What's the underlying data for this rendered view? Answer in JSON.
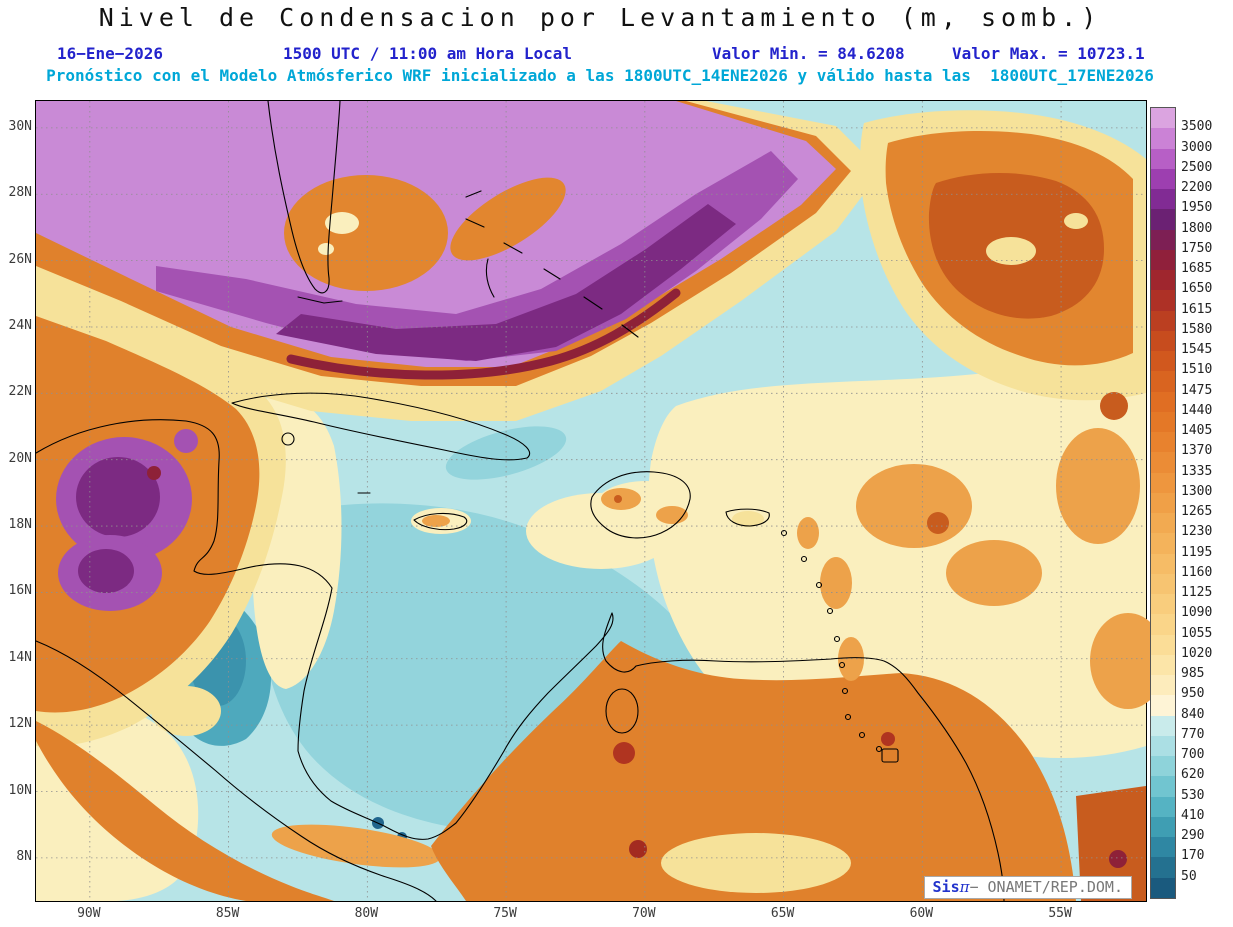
{
  "header": {
    "title": "Nivel de Condensacion por Levantamiento (m, somb.)",
    "date": "16−Ene−2026",
    "time": "1500 UTC / 11:00 am Hora Local",
    "value_min_label": "Valor Min. = 84.6208",
    "value_max_label": "Valor Max. = 10723.1",
    "model_line": "Pronóstico con el Modelo Atmósferico WRF inicializado a las 1800UTC_14ENE2026 y válido hasta las  1800UTC_17ENE2026"
  },
  "branding": {
    "sis": "Sis",
    "pi": "π",
    "rest": "− ONAMET/REP.DOM."
  },
  "chart_data": {
    "type": "heatmap",
    "title": "Nivel de Condensacion por Levantamiento (m, somb.)",
    "variable": "Nivel de Condensacion por Levantamiento (Lifted Condensation Level)",
    "units": "m",
    "shading_note": "somb.",
    "valid_date": "16-Ene-2026",
    "valid_time": "1500 UTC / 11:00 am Hora Local",
    "value_min": 84.6208,
    "value_max": 10723.1,
    "model": "WRF",
    "initialized": "1800UTC_14ENE2026",
    "valid_until": "1800UTC_17ENE2026",
    "lat_ticks": [
      "30N",
      "28N",
      "26N",
      "24N",
      "22N",
      "20N",
      "18N",
      "16N",
      "14N",
      "12N",
      "10N",
      "8N"
    ],
    "lon_ticks": [
      "90W",
      "85W",
      "80W",
      "75W",
      "70W",
      "65W",
      "60W",
      "55W"
    ],
    "lat_axis_range_deg": [
      6.7,
      30.81
    ],
    "lon_axis_range_deg": [
      -91.94,
      -51.94
    ],
    "grid": "dotted 2deg lat x 5deg lon",
    "legend_position": "right vertical colorbar",
    "colorbar_levels": [
      3500,
      3000,
      2500,
      2200,
      1950,
      1800,
      1750,
      1685,
      1650,
      1615,
      1580,
      1545,
      1510,
      1475,
      1440,
      1405,
      1370,
      1335,
      1300,
      1265,
      1230,
      1195,
      1160,
      1125,
      1090,
      1055,
      1020,
      985,
      950,
      840,
      770,
      700,
      620,
      530,
      410,
      290,
      170,
      50
    ],
    "colorbar_colors": [
      "#dba4e0",
      "#cb82d6",
      "#b75fc6",
      "#9d3fb0",
      "#812b94",
      "#6b2173",
      "#7d1f54",
      "#90203b",
      "#9f262e",
      "#ae3126",
      "#bb3f21",
      "#c74c1e",
      "#d1581e",
      "#d96420",
      "#e06e23",
      "#e47827",
      "#e8822e",
      "#eb8c36",
      "#ee963e",
      "#f0a047",
      "#f2aa51",
      "#f4b35b",
      "#f6bc66",
      "#f7c471",
      "#f9cd7d",
      "#fad589",
      "#fbdd97",
      "#fce5a8",
      "#fdecbc",
      "#fef4d6",
      "#c9ebeb",
      "#abdfe4",
      "#8ed3da",
      "#71c5d0",
      "#55b3c3",
      "#3f9eb3",
      "#2f87a3",
      "#247190",
      "#1a5a7e"
    ],
    "features": [
      {
        "region": "Gulf of Mexico, Florida and NW Atlantic diagonal band",
        "approx_values": "2500 to >3500 (light-to-dark purple)"
      },
      {
        "region": "Band core over Cuba and Bahamas toward NE",
        "approx_values": "1800–2500 (dark purple with dark-red/orange rim)"
      },
      {
        "region": "Yucatan, Guatemala and W Gulf coast",
        "approx_values": "1300–2200 (orange with purple patches)"
      },
      {
        "region": "Open Caribbean Sea",
        "approx_values": "620–840 (pale teal)"
      },
      {
        "region": "SW Caribbean off Nicaragua",
        "approx_values": "290–530 (dark teal)"
      },
      {
        "region": "Central Atlantic east of 70W",
        "approx_values": "950–1300 (pale yellow with orange patches)"
      },
      {
        "region": "NE corner of domain",
        "approx_values": "1300–1750 (orange core)"
      },
      {
        "region": "Venezuela / Colombia coast and interior",
        "approx_values": "1300–1700 (orange, local dark-red spots)"
      }
    ]
  }
}
